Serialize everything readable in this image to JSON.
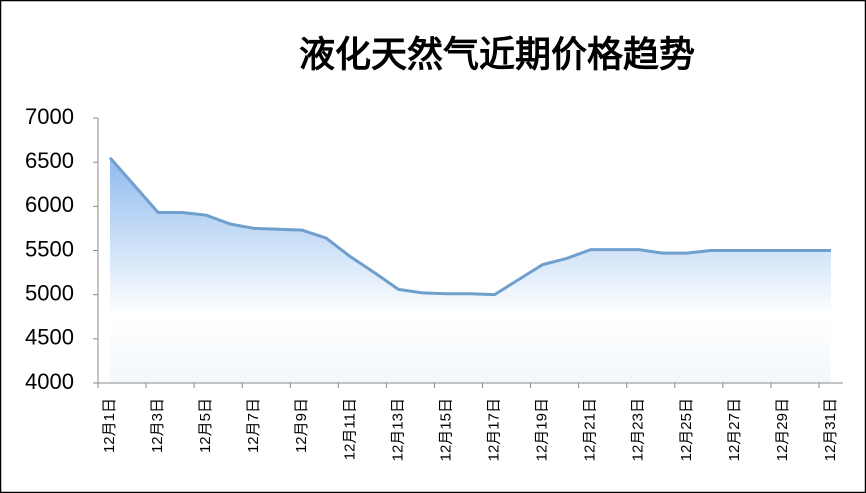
{
  "chart_data": {
    "type": "area",
    "title": "液化天然气近期价格趋势",
    "categories": [
      "12月1日",
      null,
      "12月3日",
      null,
      "12月5日",
      null,
      "12月7日",
      null,
      "12月9日",
      null,
      "12月11日",
      null,
      "12月13日",
      null,
      "12月15日",
      null,
      "12月17日",
      null,
      "12月19日",
      null,
      "12月21日",
      null,
      "12月23日",
      null,
      "12月25日",
      null,
      "12月27日",
      null,
      "12月29日",
      null,
      "12月31日"
    ],
    "values": [
      6550,
      6240,
      5930,
      5930,
      5900,
      5800,
      5750,
      5740,
      5730,
      5640,
      5430,
      5250,
      5060,
      5020,
      5010,
      5010,
      5000,
      5170,
      5340,
      5410,
      5510,
      5510,
      5510,
      5470,
      5470,
      5500,
      5500,
      5500,
      5500,
      5500,
      5500
    ],
    "color": "#6f9fcd",
    "ylim": [
      4000,
      7000
    ],
    "yticks": [
      4000,
      4500,
      5000,
      5500,
      6000,
      6500,
      7000
    ],
    "grid": false
  }
}
